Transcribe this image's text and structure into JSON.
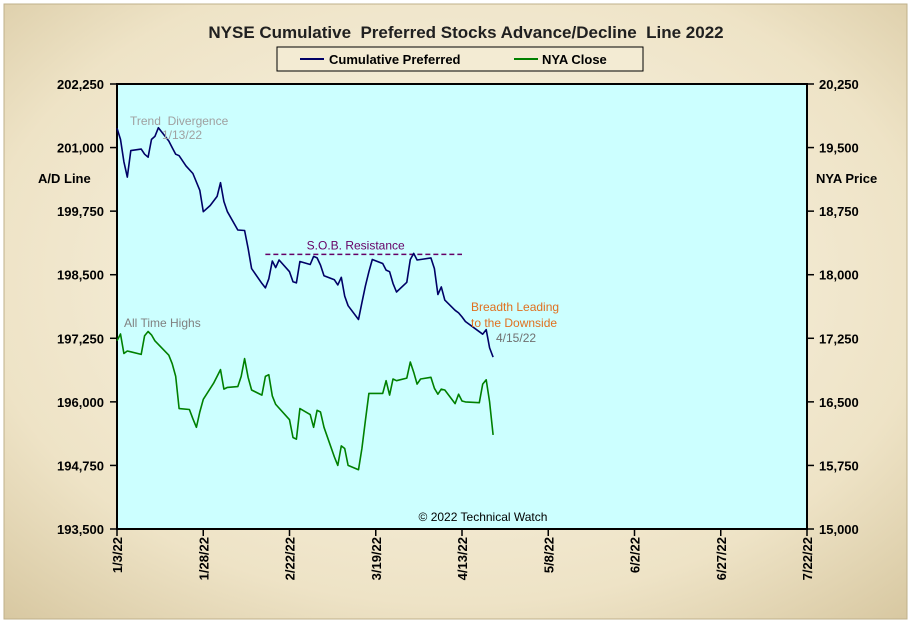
{
  "chart_data": {
    "type": "line",
    "title": "NYSE Cumulative  Preferred Stocks Advance/Decline  Line 2022",
    "legend": {
      "placement": "top-center"
    },
    "ylabel_left": "A/D Line",
    "ylabel_right": "NYA Price",
    "ylim_left": [
      193500,
      202250
    ],
    "ylim_right": [
      15000,
      20250
    ],
    "xlim": [
      "2022-01-03",
      "2022-07-22"
    ],
    "x_ticks": [
      "1/3/22",
      "1/28/22",
      "2/22/22",
      "3/19/22",
      "4/13/22",
      "5/8/22",
      "6/2/22",
      "6/27/22",
      "7/22/22"
    ],
    "y_ticks_left": [
      "193,500",
      "194,750",
      "196,000",
      "197,250",
      "198,500",
      "199,750",
      "201,000",
      "202,250"
    ],
    "y_ticks_right": [
      "15,000",
      "15,750",
      "16,500",
      "17,250",
      "18,000",
      "18,750",
      "19,500",
      "20,250"
    ],
    "grid": false,
    "series": [
      {
        "name": "Cumulative Preferred",
        "axis": "left",
        "color": "#000066",
        "points": [
          [
            "2022-01-03",
            201380
          ],
          [
            "2022-01-04",
            201160
          ],
          [
            "2022-01-05",
            200720
          ],
          [
            "2022-01-06",
            200420
          ],
          [
            "2022-01-07",
            200940
          ],
          [
            "2022-01-10",
            200970
          ],
          [
            "2022-01-11",
            200870
          ],
          [
            "2022-01-12",
            200810
          ],
          [
            "2022-01-13",
            201160
          ],
          [
            "2022-01-14",
            201220
          ],
          [
            "2022-01-15",
            201390
          ],
          [
            "2022-01-18",
            201130
          ],
          [
            "2022-01-19",
            201000
          ],
          [
            "2022-01-20",
            200870
          ],
          [
            "2022-01-21",
            200840
          ],
          [
            "2022-01-23",
            200640
          ],
          [
            "2022-01-25",
            200490
          ],
          [
            "2022-01-27",
            200160
          ],
          [
            "2022-01-28",
            199740
          ],
          [
            "2022-01-30",
            199860
          ],
          [
            "2022-02-01",
            200040
          ],
          [
            "2022-02-02",
            200310
          ],
          [
            "2022-02-03",
            199940
          ],
          [
            "2022-02-04",
            199740
          ],
          [
            "2022-02-07",
            199380
          ],
          [
            "2022-02-09",
            199370
          ],
          [
            "2022-02-10",
            199020
          ],
          [
            "2022-02-11",
            198620
          ],
          [
            "2022-02-14",
            198330
          ],
          [
            "2022-02-15",
            198240
          ],
          [
            "2022-02-16",
            198420
          ],
          [
            "2022-02-17",
            198770
          ],
          [
            "2022-02-18",
            198640
          ],
          [
            "2022-02-19",
            198790
          ],
          [
            "2022-02-22",
            198560
          ],
          [
            "2022-02-23",
            198360
          ],
          [
            "2022-02-24",
            198340
          ],
          [
            "2022-02-25",
            198760
          ],
          [
            "2022-02-28",
            198700
          ],
          [
            "2022-03-01",
            198860
          ],
          [
            "2022-03-02",
            198830
          ],
          [
            "2022-03-03",
            198690
          ],
          [
            "2022-03-04",
            198480
          ],
          [
            "2022-03-07",
            198400
          ],
          [
            "2022-03-08",
            198300
          ],
          [
            "2022-03-09",
            198450
          ],
          [
            "2022-03-10",
            198080
          ],
          [
            "2022-03-11",
            197890
          ],
          [
            "2022-03-14",
            197620
          ],
          [
            "2022-03-15",
            197950
          ],
          [
            "2022-03-16",
            198280
          ],
          [
            "2022-03-17",
            198560
          ],
          [
            "2022-03-18",
            198800
          ],
          [
            "2022-03-21",
            198720
          ],
          [
            "2022-03-22",
            198590
          ],
          [
            "2022-03-23",
            198560
          ],
          [
            "2022-03-24",
            198330
          ],
          [
            "2022-03-25",
            198160
          ],
          [
            "2022-03-28",
            198350
          ],
          [
            "2022-03-29",
            198800
          ],
          [
            "2022-03-30",
            198920
          ],
          [
            "2022-03-31",
            198790
          ],
          [
            "2022-04-01",
            198800
          ],
          [
            "2022-04-04",
            198830
          ],
          [
            "2022-04-05",
            198620
          ],
          [
            "2022-04-06",
            198110
          ],
          [
            "2022-04-07",
            198260
          ],
          [
            "2022-04-08",
            198000
          ],
          [
            "2022-04-11",
            197800
          ],
          [
            "2022-04-12",
            197750
          ],
          [
            "2022-04-13",
            197670
          ],
          [
            "2022-04-14",
            197580
          ],
          [
            "2022-04-18",
            197380
          ],
          [
            "2022-04-19",
            197330
          ],
          [
            "2022-04-20",
            197420
          ],
          [
            "2022-04-21",
            197060
          ],
          [
            "2022-04-22",
            196880
          ]
        ]
      },
      {
        "name": "NYA Close",
        "axis": "right",
        "color": "#008000",
        "points": [
          [
            "2022-01-03",
            17220
          ],
          [
            "2022-01-04",
            17300
          ],
          [
            "2022-01-05",
            17070
          ],
          [
            "2022-01-06",
            17100
          ],
          [
            "2022-01-07",
            17090
          ],
          [
            "2022-01-10",
            17060
          ],
          [
            "2022-01-11",
            17280
          ],
          [
            "2022-01-12",
            17330
          ],
          [
            "2022-01-13",
            17290
          ],
          [
            "2022-01-14",
            17220
          ],
          [
            "2022-01-18",
            17050
          ],
          [
            "2022-01-19",
            16950
          ],
          [
            "2022-01-20",
            16800
          ],
          [
            "2022-01-21",
            16420
          ],
          [
            "2022-01-24",
            16410
          ],
          [
            "2022-01-25",
            16300
          ],
          [
            "2022-01-26",
            16200
          ],
          [
            "2022-01-27",
            16380
          ],
          [
            "2022-01-28",
            16530
          ],
          [
            "2022-01-31",
            16720
          ],
          [
            "2022-02-01",
            16800
          ],
          [
            "2022-02-02",
            16880
          ],
          [
            "2022-02-03",
            16650
          ],
          [
            "2022-02-04",
            16670
          ],
          [
            "2022-02-07",
            16680
          ],
          [
            "2022-02-08",
            16800
          ],
          [
            "2022-02-09",
            17010
          ],
          [
            "2022-02-10",
            16790
          ],
          [
            "2022-02-11",
            16640
          ],
          [
            "2022-02-14",
            16580
          ],
          [
            "2022-02-15",
            16800
          ],
          [
            "2022-02-16",
            16820
          ],
          [
            "2022-02-17",
            16570
          ],
          [
            "2022-02-18",
            16470
          ],
          [
            "2022-02-22",
            16290
          ],
          [
            "2022-02-23",
            16080
          ],
          [
            "2022-02-24",
            16060
          ],
          [
            "2022-02-25",
            16420
          ],
          [
            "2022-02-28",
            16350
          ],
          [
            "2022-03-01",
            16200
          ],
          [
            "2022-03-02",
            16400
          ],
          [
            "2022-03-03",
            16380
          ],
          [
            "2022-03-04",
            16200
          ],
          [
            "2022-03-07",
            15850
          ],
          [
            "2022-03-08",
            15750
          ],
          [
            "2022-03-09",
            15980
          ],
          [
            "2022-03-10",
            15950
          ],
          [
            "2022-03-11",
            15750
          ],
          [
            "2022-03-14",
            15700
          ],
          [
            "2022-03-15",
            15950
          ],
          [
            "2022-03-16",
            16280
          ],
          [
            "2022-03-17",
            16600
          ],
          [
            "2022-03-18",
            16600
          ],
          [
            "2022-03-21",
            16600
          ],
          [
            "2022-03-22",
            16750
          ],
          [
            "2022-03-23",
            16580
          ],
          [
            "2022-03-24",
            16770
          ],
          [
            "2022-03-25",
            16750
          ],
          [
            "2022-03-28",
            16780
          ],
          [
            "2022-03-29",
            16970
          ],
          [
            "2022-03-30",
            16850
          ],
          [
            "2022-03-31",
            16710
          ],
          [
            "2022-04-01",
            16770
          ],
          [
            "2022-04-04",
            16790
          ],
          [
            "2022-04-05",
            16660
          ],
          [
            "2022-04-06",
            16590
          ],
          [
            "2022-04-07",
            16650
          ],
          [
            "2022-04-08",
            16640
          ],
          [
            "2022-04-11",
            16480
          ],
          [
            "2022-04-12",
            16590
          ],
          [
            "2022-04-13",
            16510
          ],
          [
            "2022-04-14",
            16500
          ],
          [
            "2022-04-18",
            16490
          ],
          [
            "2022-04-19",
            16710
          ],
          [
            "2022-04-20",
            16760
          ],
          [
            "2022-04-21",
            16500
          ],
          [
            "2022-04-22",
            16110
          ]
        ]
      }
    ],
    "resistance_line": {
      "label": "S.O.B. Resistance",
      "value": 198900,
      "x_start": "2022-02-15",
      "x_end": "2022-04-13",
      "color": "#660066"
    },
    "annotations": [
      {
        "id": "trend-divergence",
        "lines": [
          "Trend  Divergence",
          "1/13/22"
        ],
        "color": "#a0a0a0"
      },
      {
        "id": "all-time-highs",
        "lines": [
          "All Time Highs"
        ],
        "color": "#808080"
      },
      {
        "id": "breadth-leading",
        "lines": [
          "Breadth Leading",
          "to the Downside"
        ],
        "color": "#e07020"
      },
      {
        "id": "breadth-date",
        "lines": [
          "4/15/22"
        ],
        "color": "#707070"
      }
    ],
    "copyright": "© 2022 Technical Watch",
    "colors": {
      "plot_background": "#ccffff",
      "frame_background": "#ece1c6",
      "border": "#000000"
    }
  }
}
